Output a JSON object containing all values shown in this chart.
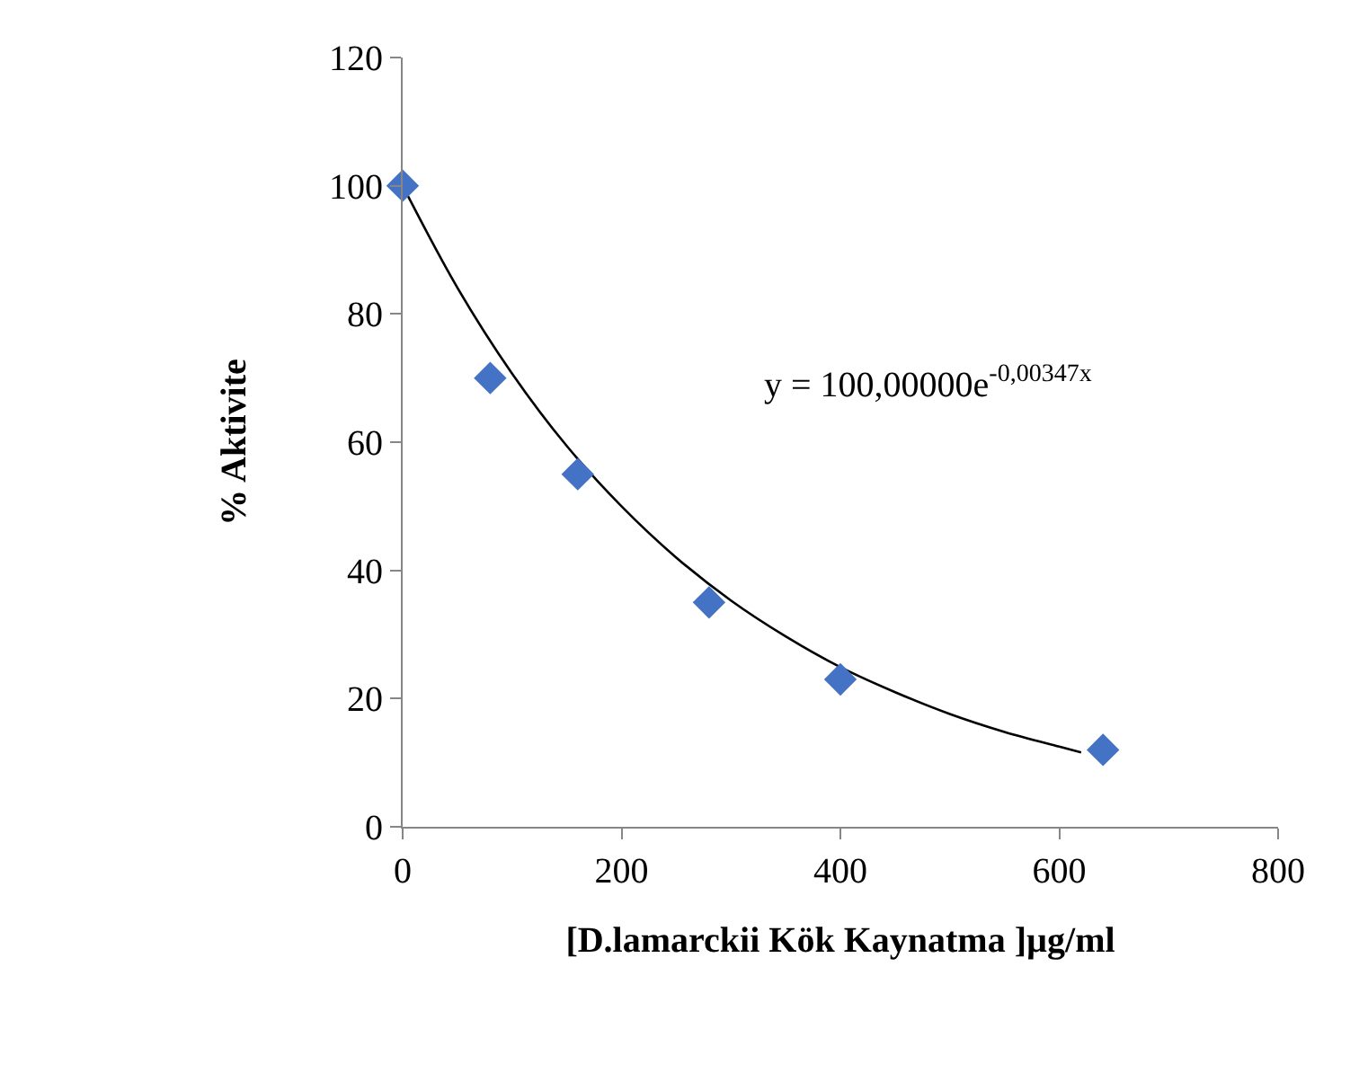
{
  "chart_data": {
    "type": "scatter",
    "xlabel": "[D.lamarckii Kök Kaynatma ]µg/ml",
    "ylabel": "% Aktivite",
    "xlim": [
      0,
      800
    ],
    "xticks": [
      0,
      200,
      400,
      600,
      800
    ],
    "ylim": [
      0,
      120
    ],
    "yticks": [
      0,
      20,
      40,
      60,
      80,
      100,
      120
    ],
    "grid": false,
    "series": [
      {
        "marker": "diamond",
        "color": "#4472c4",
        "x": [
          0,
          80,
          160,
          280,
          400,
          640
        ],
        "values": [
          100,
          70,
          55,
          35,
          23,
          12
        ]
      },
      {
        "type": "line",
        "color": "#000000",
        "line_style": "solid",
        "x": [
          0,
          50,
          100,
          150,
          200,
          250,
          300,
          350,
          400,
          450,
          500,
          550,
          600,
          620
        ],
        "values": [
          100,
          84.1,
          70.7,
          59.4,
          50.0,
          42.0,
          35.3,
          29.7,
          24.9,
          21.0,
          17.6,
          14.8,
          12.5,
          11.6
        ]
      }
    ],
    "annotations": [
      "y = 100,00000e$^{-0,00347x}$"
    ]
  }
}
